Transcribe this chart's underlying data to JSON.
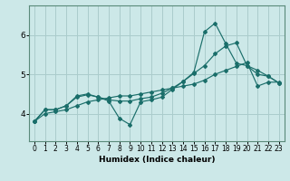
{
  "xlabel": "Humidex (Indice chaleur)",
  "bg_color": "#cce8e8",
  "grid_color": "#aacccc",
  "line_color": "#1a6e6a",
  "xlim": [
    -0.5,
    23.5
  ],
  "ylim": [
    3.3,
    6.75
  ],
  "yticks": [
    4,
    5,
    6
  ],
  "xticks": [
    0,
    1,
    2,
    3,
    4,
    5,
    6,
    7,
    8,
    9,
    10,
    11,
    12,
    13,
    14,
    15,
    16,
    17,
    18,
    19,
    20,
    21,
    22,
    23
  ],
  "line1_x": [
    0,
    1,
    2,
    3,
    4,
    5,
    6,
    7,
    8,
    9,
    10,
    11,
    12,
    13,
    14,
    15,
    16,
    17,
    18,
    19,
    20,
    21,
    22,
    23
  ],
  "line1_y": [
    3.8,
    4.1,
    4.1,
    4.2,
    4.45,
    4.5,
    4.42,
    4.32,
    3.88,
    3.72,
    4.3,
    4.35,
    4.42,
    4.62,
    4.82,
    5.05,
    6.08,
    6.3,
    5.78,
    5.28,
    5.22,
    5.0,
    4.95,
    4.78
  ],
  "line2_x": [
    0,
    1,
    2,
    3,
    4,
    5,
    6,
    7,
    8,
    9,
    10,
    11,
    12,
    13,
    14,
    15,
    16,
    17,
    18,
    19,
    20,
    21,
    22,
    23
  ],
  "line2_y": [
    3.8,
    4.1,
    4.1,
    4.2,
    4.42,
    4.48,
    4.42,
    4.35,
    4.32,
    4.32,
    4.38,
    4.42,
    4.52,
    4.65,
    4.82,
    5.02,
    5.22,
    5.52,
    5.72,
    5.8,
    5.22,
    5.1,
    4.95,
    4.78
  ],
  "line3_x": [
    0,
    1,
    2,
    3,
    4,
    5,
    6,
    7,
    8,
    9,
    10,
    11,
    12,
    13,
    14,
    15,
    16,
    17,
    18,
    19,
    20,
    21,
    22,
    23
  ],
  "line3_y": [
    3.8,
    4.0,
    4.05,
    4.1,
    4.2,
    4.3,
    4.35,
    4.4,
    4.45,
    4.45,
    4.5,
    4.55,
    4.6,
    4.65,
    4.7,
    4.75,
    4.85,
    5.0,
    5.1,
    5.2,
    5.3,
    4.7,
    4.8,
    4.8
  ]
}
